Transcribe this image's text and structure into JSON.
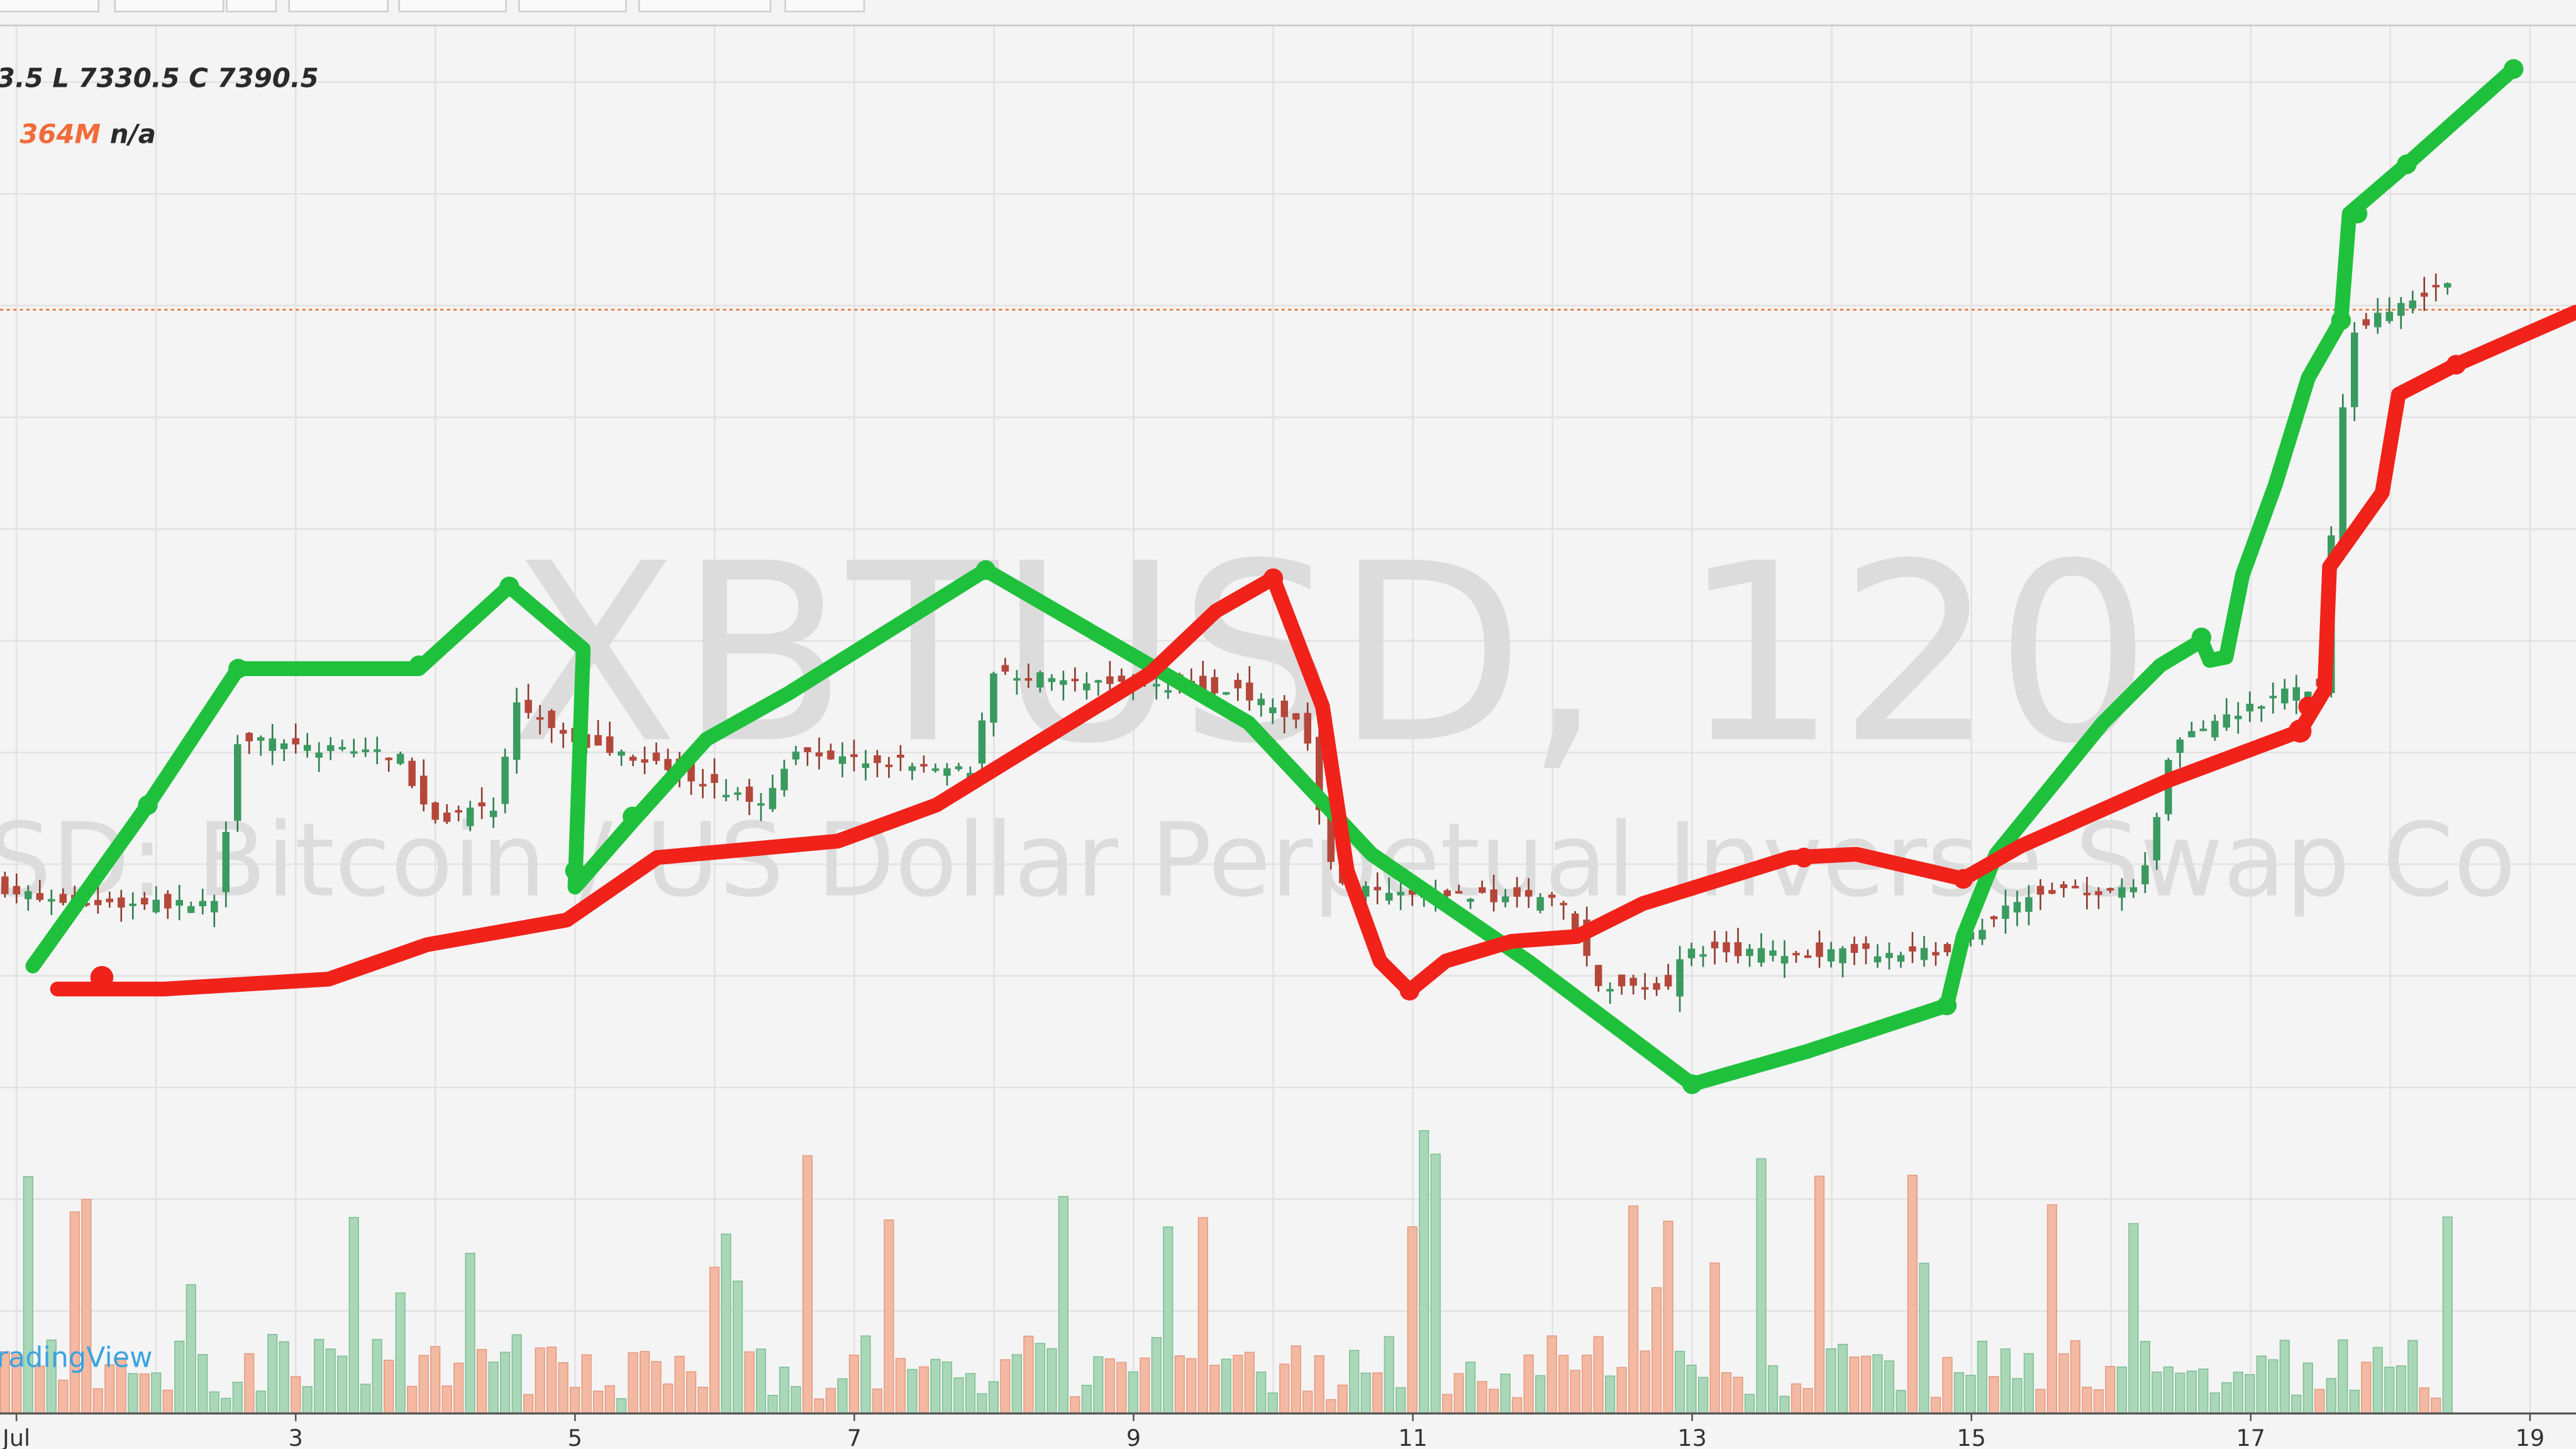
{
  "legend": {
    "high_value": "3.5",
    "low_label": "L",
    "low_value": "7330.5",
    "close_label": "C",
    "close_value": "7390.5",
    "volume_value": "364M",
    "volume_ma": "n/a"
  },
  "watermark": {
    "symbol": "XBTUSD, 120",
    "description": "SD: Bitcoin / US Dollar Perpetual Inverse Swap Co"
  },
  "x_axis": {
    "labels": [
      "Jul",
      "3",
      "5",
      "7",
      "9",
      "11",
      "13",
      "15",
      "17",
      "19"
    ]
  },
  "logo": "radingView"
}
